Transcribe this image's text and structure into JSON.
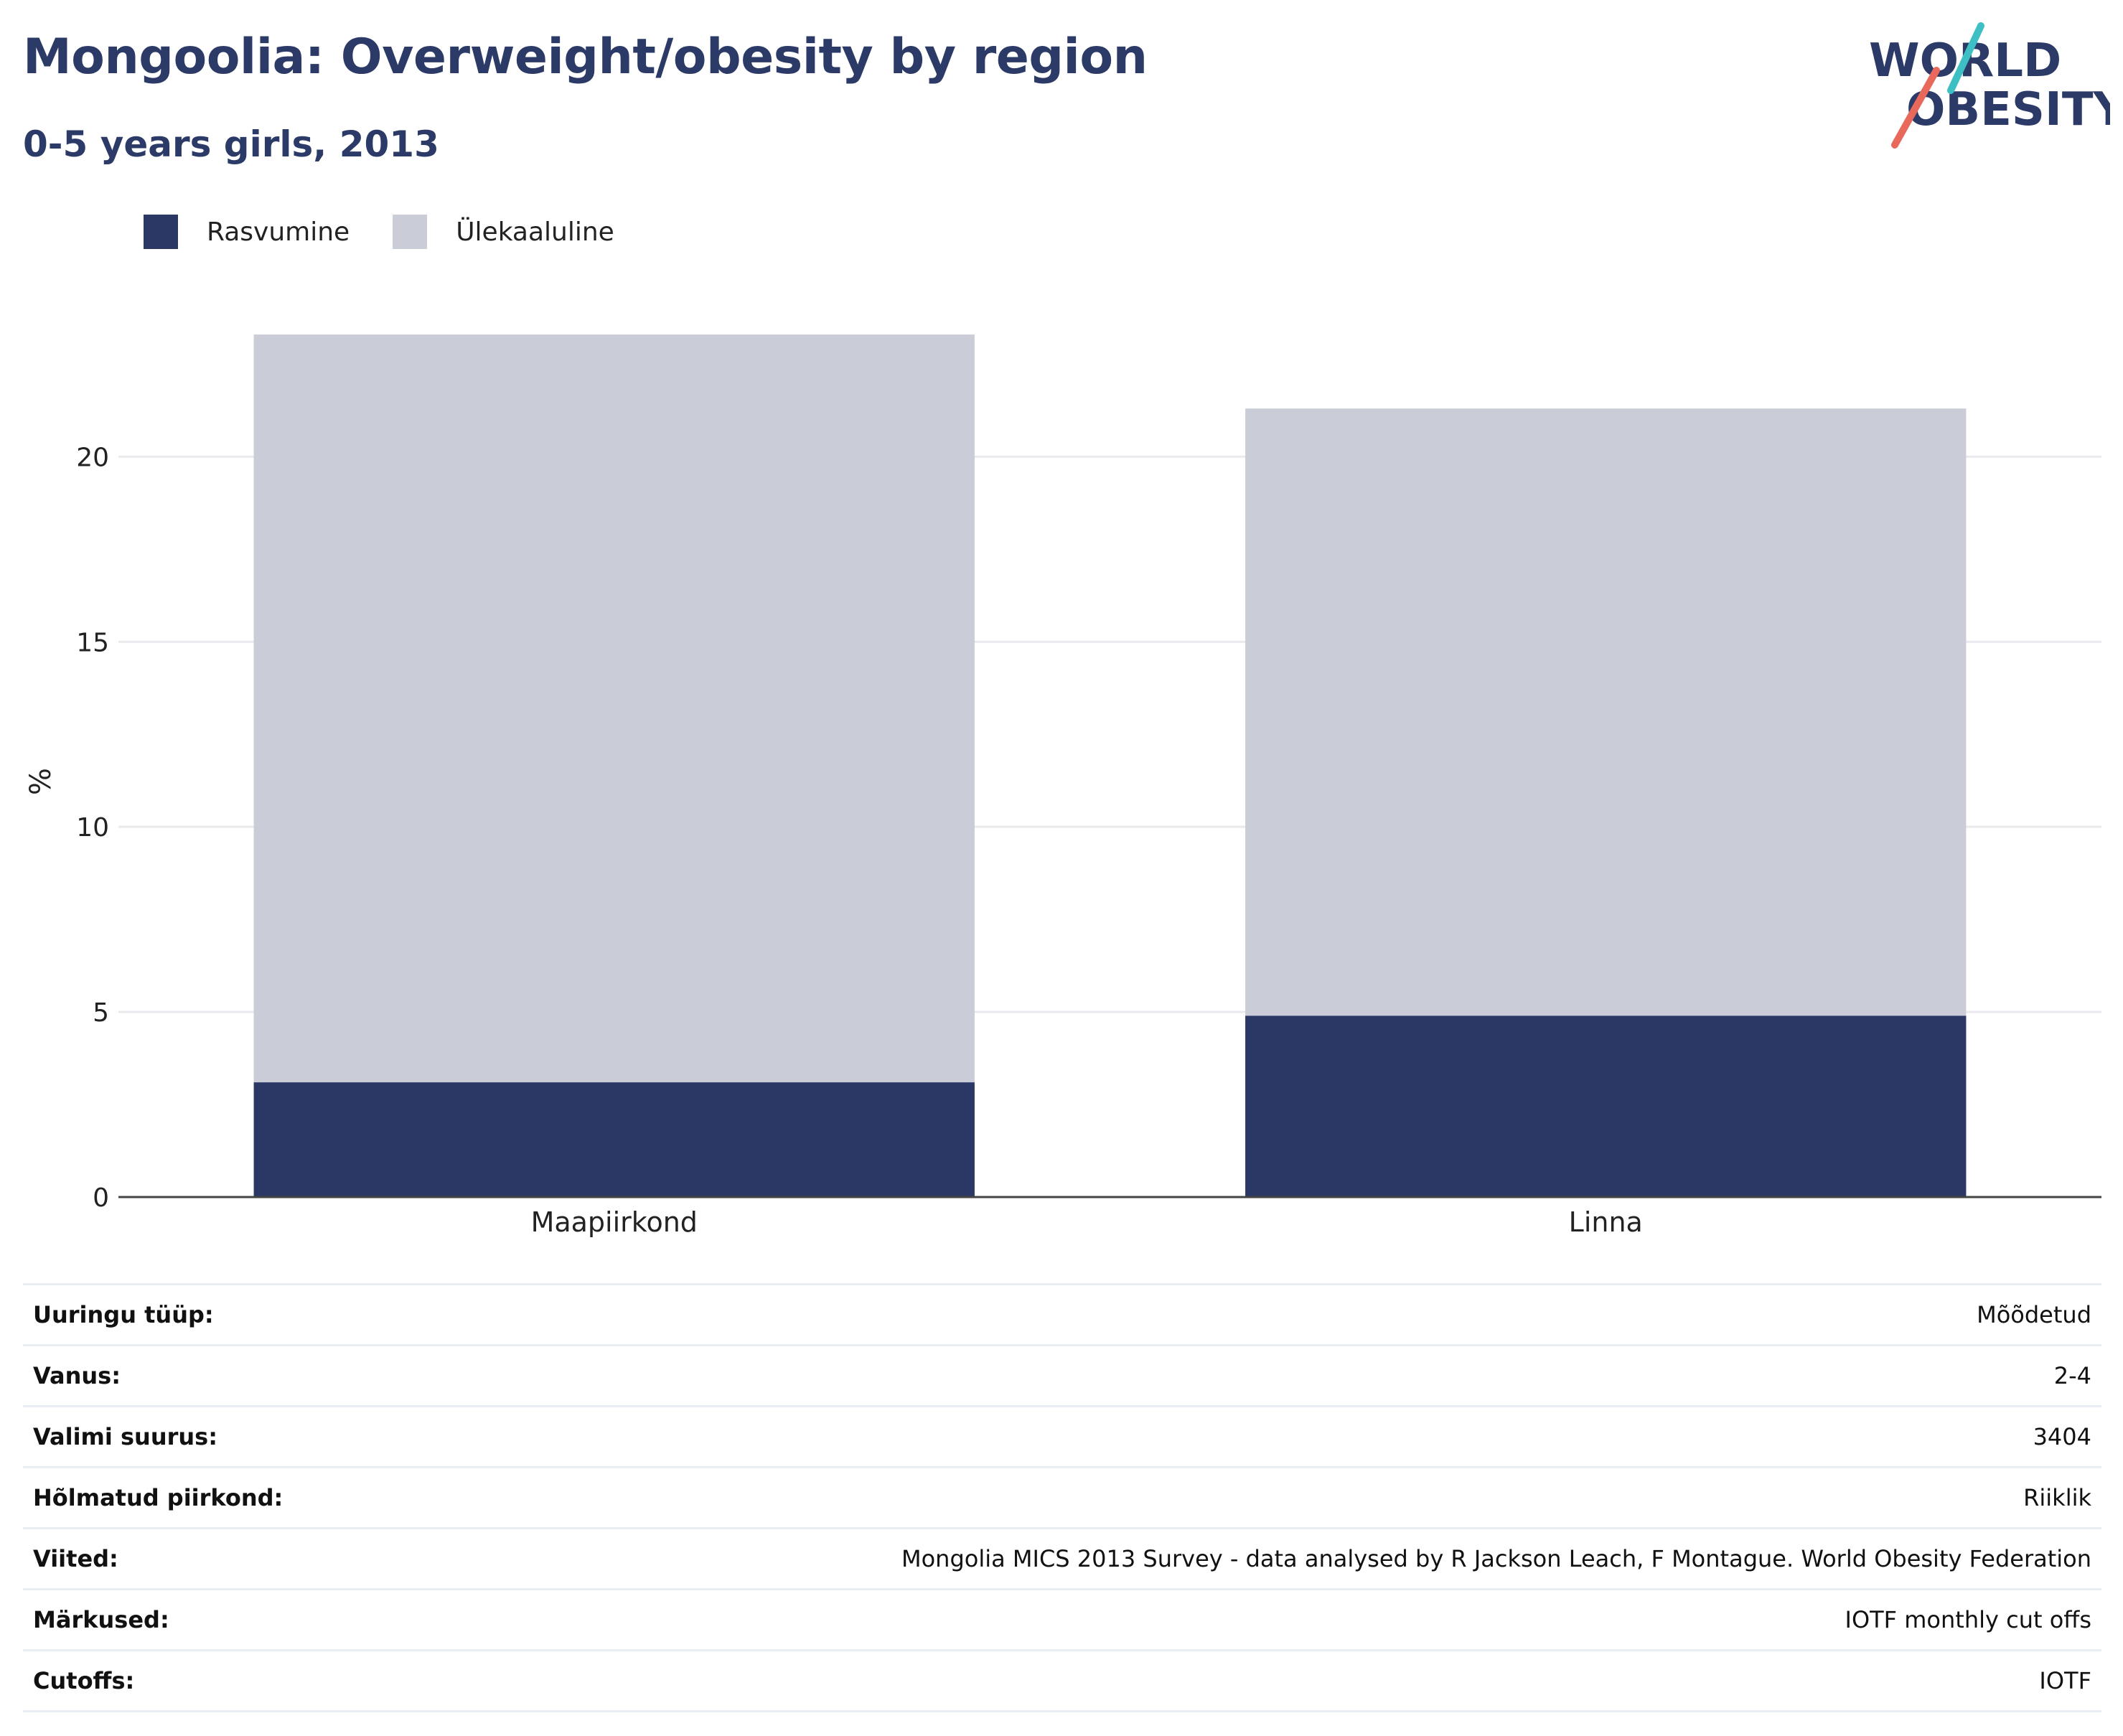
{
  "header": {
    "title": "Mongoolia: Overweight/obesity by region",
    "subtitle": "0-5 years girls, 2013"
  },
  "logo": {
    "line1": "WORLD",
    "line2": "OBESITY",
    "icon": "world-obesity-logo"
  },
  "colors": {
    "obesity": "#2b3765",
    "overweight": "#cacdd8",
    "text_dark": "#2b3a66",
    "accent_teal": "#3dbfc4",
    "accent_coral": "#e8695c"
  },
  "chart_data": {
    "type": "bar",
    "stacked": true,
    "categories": [
      "Maapiirkond",
      "Linna"
    ],
    "series": [
      {
        "name": "Rasvumine",
        "values": [
          3.1,
          4.9
        ]
      },
      {
        "name": "Ülekaaluline",
        "values": [
          20.2,
          16.4
        ]
      }
    ],
    "ylabel": "%",
    "ylim": [
      0,
      24
    ],
    "yticks": [
      0,
      5,
      10,
      15,
      20
    ],
    "grid": true,
    "legend": "top-left"
  },
  "meta": [
    {
      "key": "Uuringu tüüp:",
      "value": "Mõõdetud"
    },
    {
      "key": "Vanus:",
      "value": "2-4"
    },
    {
      "key": "Valimi suurus:",
      "value": "3404"
    },
    {
      "key": "Hõlmatud piirkond:",
      "value": "Riiklik"
    },
    {
      "key": "Viited:",
      "value": "Mongolia MICS 2013 Survey - data analysed by R Jackson Leach, F Montague. World Obesity Federation"
    },
    {
      "key": "Märkused:",
      "value": "IOTF monthly cut offs"
    },
    {
      "key": "Cutoffs:",
      "value": "IOTF"
    }
  ]
}
